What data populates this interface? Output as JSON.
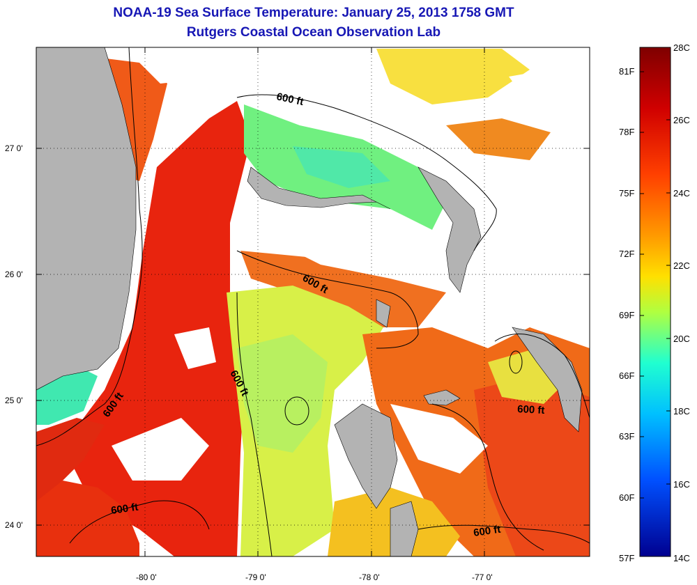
{
  "header": {
    "title": "NOAA-19 Sea Surface Temperature:  January 25, 2013 1758 GMT",
    "subtitle": "Rutgers Coastal Ocean Observation Lab"
  },
  "map": {
    "lon_labels": [
      "-80 0'",
      "-79 0'",
      "-78 0'",
      "-77 0'"
    ],
    "lat_labels": [
      "27 0'",
      "26 0'",
      "25 0'",
      "24 0'"
    ],
    "contour_labels": [
      "600 ft",
      "600 ft",
      "600 ft",
      "600 ft",
      "600 ft",
      "600 ft"
    ]
  },
  "colorbar": {
    "celsius": [
      "28C",
      "26C",
      "24C",
      "22C",
      "20C",
      "18C",
      "16C",
      "14C"
    ],
    "fahrenheit": [
      "81F",
      "78F",
      "75F",
      "72F",
      "69F",
      "66F",
      "63F",
      "60F",
      "57F"
    ],
    "colors": {
      "top": "#7f0000",
      "red": "#ff1a00",
      "orange": "#ff8c00",
      "yellow": "#ffff00",
      "cyan": "#00ffff",
      "blue": "#0080ff",
      "bottom": "#00008f"
    }
  },
  "legend_colors": {
    "land": "#b3b3b3",
    "gulf_stream": "#e0200e",
    "warm": "#f06018",
    "mild": "#f8c020",
    "cool": "#c8f040",
    "cold": "#40f0b0"
  }
}
